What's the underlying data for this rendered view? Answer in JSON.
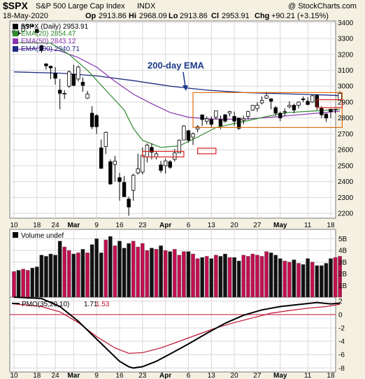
{
  "header": {
    "symbol": "$SPX",
    "name": "S&P 500 Large Cap Index",
    "exchange": "INDX",
    "source": "@ StockCharts.com",
    "date": "18-May-2020",
    "op_label": "Op",
    "op": "2913.86",
    "hi_label": "Hi",
    "hi": "2968.09",
    "lo_label": "Lo",
    "lo": "2913.86",
    "cl_label": "Cl",
    "cl": "2953.91",
    "chg_label": "Chg",
    "chg": "+90.21 (+3.15%)"
  },
  "legend": {
    "price": "$SPX (Daily) 2953.91",
    "ema20": "EMA(20) 2854.47",
    "ema50": "EMA(50) 2843.12",
    "ema200": "EMA(200) 2940.71"
  },
  "annotation": "200-day EMA",
  "volume_label": "Volume undef",
  "pmo_label": "PMO(35,20,10)",
  "pmo_value": "1.71",
  "pmo_signal": "1.53",
  "colors": {
    "up": "#ffffff",
    "down": "#000000",
    "ema20": "#2f8a2f",
    "ema50": "#8a35b0",
    "ema200": "#1f2a80",
    "vol_up": "#c01050",
    "vol_down": "#111111",
    "pmo": "#000000",
    "signal": "#c01030",
    "box": "#e07010",
    "red_box": "#e02020",
    "annotation": "#1c3a8c",
    "background": "#f4f1e3"
  },
  "chart_data": [
    {
      "type": "candlestick",
      "yticks": [
        "2200",
        "2300",
        "2400",
        "2500",
        "2600",
        "2700",
        "2800",
        "2900",
        "3000",
        "3100",
        "3200",
        "3300",
        "3400"
      ],
      "ylim": [
        2170,
        3410
      ],
      "xticks": [
        "10",
        "18",
        "24",
        "Mar",
        "9",
        "16",
        "23",
        "Apr",
        "6",
        "13",
        "20",
        "27",
        "May",
        "11",
        "18"
      ],
      "ohlc": [
        [
          3335,
          3353,
          3318,
          3348
        ],
        [
          3335,
          3352,
          3320,
          3330
        ],
        [
          3345,
          3385,
          3340,
          3380
        ],
        [
          3378,
          3390,
          3360,
          3385
        ],
        [
          3380,
          3392,
          3370,
          3375
        ],
        [
          3357,
          3362,
          3325,
          3337
        ],
        [
          3255,
          3260,
          3210,
          3225
        ],
        [
          3140,
          3145,
          3105,
          3128
        ],
        [
          3125,
          3130,
          3045,
          3115
        ],
        [
          3080,
          3120,
          3010,
          3050
        ],
        [
          2975,
          3045,
          2855,
          2955
        ],
        [
          2950,
          2975,
          2920,
          2955
        ],
        [
          3000,
          3100,
          2990,
          3090
        ],
        [
          3075,
          3135,
          3000,
          3005
        ],
        [
          3045,
          3130,
          3030,
          3120
        ],
        [
          3025,
          3055,
          2965,
          3005
        ],
        [
          2925,
          2970,
          2920,
          2950
        ],
        [
          2830,
          2875,
          2730,
          2745
        ],
        [
          2815,
          2825,
          2700,
          2745
        ],
        [
          2612,
          2665,
          2482,
          2483
        ],
        [
          2620,
          2715,
          2572,
          2710
        ],
        [
          2525,
          2540,
          2380,
          2385
        ],
        [
          2508,
          2562,
          2400,
          2529
        ],
        [
          2425,
          2455,
          2280,
          2400
        ],
        [
          2395,
          2435,
          2305,
          2305
        ],
        [
          2290,
          2305,
          2185,
          2240
        ],
        [
          2345,
          2450,
          2280,
          2440
        ],
        [
          2455,
          2575,
          2445,
          2480
        ],
        [
          2460,
          2615,
          2445,
          2565
        ],
        [
          2555,
          2640,
          2520,
          2630
        ],
        [
          2615,
          2640,
          2540,
          2585
        ],
        [
          2555,
          2590,
          2540,
          2575
        ],
        [
          2505,
          2530,
          2455,
          2470
        ],
        [
          2500,
          2545,
          2450,
          2530
        ],
        [
          2525,
          2535,
          2480,
          2490
        ],
        [
          2540,
          2605,
          2525,
          2580
        ],
        [
          2580,
          2665,
          2580,
          2660
        ],
        [
          2662,
          2755,
          2660,
          2750
        ],
        [
          2720,
          2725,
          2645,
          2660
        ],
        [
          2680,
          2710,
          2630,
          2700
        ],
        [
          2730,
          2755,
          2710,
          2745
        ],
        [
          2820,
          2820,
          2750,
          2790
        ],
        [
          2780,
          2810,
          2760,
          2795
        ],
        [
          2790,
          2810,
          2740,
          2760
        ],
        [
          2805,
          2845,
          2790,
          2845
        ],
        [
          2790,
          2815,
          2730,
          2750
        ],
        [
          2820,
          2825,
          2770,
          2780
        ],
        [
          2830,
          2845,
          2810,
          2840
        ],
        [
          2810,
          2840,
          2750,
          2780
        ],
        [
          2800,
          2800,
          2725,
          2735
        ],
        [
          2785,
          2815,
          2760,
          2795
        ],
        [
          2810,
          2845,
          2790,
          2840
        ],
        [
          2850,
          2880,
          2845,
          2880
        ],
        [
          2860,
          2900,
          2840,
          2880
        ],
        [
          2895,
          2935,
          2885,
          2910
        ],
        [
          2925,
          2965,
          2920,
          2940
        ],
        [
          2920,
          2925,
          2855,
          2905
        ],
        [
          2865,
          2875,
          2815,
          2830
        ],
        [
          2830,
          2840,
          2780,
          2800
        ],
        [
          2840,
          2860,
          2810,
          2840
        ],
        [
          2870,
          2905,
          2860,
          2880
        ],
        [
          2880,
          2890,
          2830,
          2850
        ],
        [
          2880,
          2905,
          2860,
          2900
        ],
        [
          2920,
          2935,
          2900,
          2915
        ],
        [
          2905,
          2930,
          2880,
          2885
        ],
        [
          2900,
          2945,
          2895,
          2940
        ],
        [
          2945,
          2945,
          2850,
          2870
        ],
        [
          2860,
          2875,
          2800,
          2820
        ],
        [
          2825,
          2830,
          2775,
          2800
        ],
        [
          2855,
          2855,
          2800,
          2840
        ],
        [
          2854,
          2855,
          2830,
          2855
        ],
        [
          2914,
          2968,
          2914,
          2954
        ]
      ],
      "ema20": [
        [
          0,
          3275
        ],
        [
          8,
          3270
        ],
        [
          12,
          3200
        ],
        [
          16,
          3100
        ],
        [
          20,
          2975
        ],
        [
          24,
          2850
        ],
        [
          26,
          2735
        ],
        [
          28,
          2660
        ],
        [
          32,
          2615
        ],
        [
          36,
          2625
        ],
        [
          40,
          2680
        ],
        [
          44,
          2740
        ],
        [
          48,
          2765
        ],
        [
          52,
          2790
        ],
        [
          56,
          2815
        ],
        [
          60,
          2835
        ],
        [
          66,
          2845
        ],
        [
          71,
          2855
        ]
      ],
      "ema50": [
        [
          0,
          3230
        ],
        [
          6,
          3240
        ],
        [
          10,
          3222
        ],
        [
          14,
          3180
        ],
        [
          18,
          3120
        ],
        [
          22,
          3030
        ],
        [
          26,
          2950
        ],
        [
          30,
          2890
        ],
        [
          34,
          2835
        ],
        [
          38,
          2805
        ],
        [
          42,
          2795
        ],
        [
          46,
          2792
        ],
        [
          50,
          2793
        ],
        [
          54,
          2800
        ],
        [
          58,
          2810
        ],
        [
          62,
          2820
        ],
        [
          66,
          2830
        ],
        [
          71,
          2843
        ]
      ],
      "ema200": [
        [
          0,
          3090
        ],
        [
          10,
          3082
        ],
        [
          18,
          3065
        ],
        [
          26,
          3035
        ],
        [
          34,
          3000
        ],
        [
          42,
          2975
        ],
        [
          50,
          2960
        ],
        [
          58,
          2953
        ],
        [
          66,
          2946
        ],
        [
          71,
          2941
        ]
      ],
      "boxes": [
        {
          "kind": "consolidation",
          "x": [
            39,
            71.5
          ],
          "y": [
            2740,
            2960
          ]
        },
        {
          "kind": "gap",
          "x": [
            66,
            71.5
          ],
          "y": [
            2865,
            2915
          ]
        },
        {
          "kind": "gap",
          "x": [
            28,
            37
          ],
          "y": [
            2555,
            2590
          ]
        },
        {
          "kind": "gap",
          "x": [
            40,
            44
          ],
          "y": [
            2575,
            2610
          ]
        }
      ]
    },
    {
      "type": "bar",
      "name": "Volume",
      "yticks": [
        "1B",
        "2B",
        "3B",
        "4B",
        "5B"
      ],
      "ylim": [
        0,
        5.8
      ],
      "values": [
        2.2,
        2.3,
        2.4,
        2.3,
        2.5,
        2.6,
        3.6,
        3.5,
        3.7,
        3.6,
        4.8,
        4.3,
        4.0,
        3.7,
        3.8,
        4.1,
        3.8,
        4.5,
        5.0,
        3.8,
        4.9,
        5.2,
        4.4,
        4.8,
        4.2,
        4.6,
        4.8,
        4.3,
        4.6,
        4.0,
        4.2,
        4.1,
        4.4,
        4.0,
        3.9,
        4.1,
        3.6,
        3.9,
        3.9,
        3.7,
        3.3,
        3.4,
        3.5,
        3.3,
        3.6,
        3.5,
        3.7,
        3.4,
        3.4,
        3.1,
        3.6,
        3.5,
        3.7,
        3.6,
        3.5,
        3.9,
        3.8,
        3.6,
        3.3,
        3.1,
        3.0,
        3.2,
        2.9,
        2.8,
        3.3,
        3.0,
        2.7,
        2.7,
        2.9,
        3.3,
        3.4,
        3.5
      ]
    },
    {
      "type": "line",
      "name": "PMO",
      "yticks": [
        "-8",
        "-6",
        "-4",
        "-2",
        "0",
        "2"
      ],
      "ylim": [
        -8.6,
        2.6
      ],
      "pmo": [
        [
          0,
          2.6
        ],
        [
          6,
          2.4
        ],
        [
          10,
          1.2
        ],
        [
          14,
          -1.0
        ],
        [
          17,
          -3.0
        ],
        [
          20,
          -5.0
        ],
        [
          23,
          -7.0
        ],
        [
          25,
          -7.8
        ],
        [
          26,
          -8.0
        ],
        [
          28,
          -7.8
        ],
        [
          31,
          -7.0
        ],
        [
          34,
          -5.9
        ],
        [
          38,
          -4.4
        ],
        [
          42,
          -2.8
        ],
        [
          46,
          -1.3
        ],
        [
          50,
          -0.1
        ],
        [
          54,
          0.7
        ],
        [
          58,
          1.2
        ],
        [
          62,
          1.5
        ],
        [
          66,
          1.8
        ],
        [
          69,
          1.6
        ],
        [
          71,
          1.71
        ]
      ],
      "signal": [
        [
          0,
          1.6
        ],
        [
          6,
          1.2
        ],
        [
          10,
          0.4
        ],
        [
          14,
          -1.2
        ],
        [
          18,
          -3.3
        ],
        [
          22,
          -5.0
        ],
        [
          25,
          -5.8
        ],
        [
          28,
          -5.7
        ],
        [
          32,
          -5.0
        ],
        [
          36,
          -4.0
        ],
        [
          40,
          -3.0
        ],
        [
          44,
          -2.0
        ],
        [
          48,
          -1.2
        ],
        [
          52,
          -0.5
        ],
        [
          56,
          0.2
        ],
        [
          60,
          0.6
        ],
        [
          64,
          0.95
        ],
        [
          68,
          1.2
        ],
        [
          71,
          1.53
        ]
      ]
    }
  ]
}
